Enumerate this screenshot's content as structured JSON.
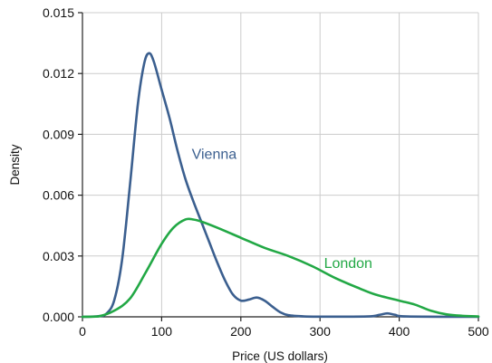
{
  "chart_data": {
    "type": "line",
    "xlabel": "Price (US dollars)",
    "ylabel": "Density",
    "xlim": [
      0,
      500
    ],
    "ylim": [
      0,
      0.015
    ],
    "x_ticks": [
      0,
      100,
      200,
      300,
      400,
      500
    ],
    "x_tick_labels": [
      "0",
      "100",
      "200",
      "300",
      "400",
      "500"
    ],
    "y_ticks": [
      0,
      0.003,
      0.006,
      0.009,
      0.012,
      0.015
    ],
    "y_tick_labels": [
      "0.000",
      "0.003",
      "0.006",
      "0.009",
      "0.012",
      "0.015"
    ],
    "grid": true,
    "legend": "none",
    "series": [
      {
        "name": "Vienna",
        "color": "#3b5f8f",
        "label_at": [
          138,
          0.0078
        ],
        "points": [
          [
            0,
            0
          ],
          [
            20,
            3e-05
          ],
          [
            30,
            0.00015
          ],
          [
            40,
            0.0008
          ],
          [
            50,
            0.0028
          ],
          [
            60,
            0.0065
          ],
          [
            70,
            0.0105
          ],
          [
            78,
            0.0125
          ],
          [
            84,
            0.013
          ],
          [
            90,
            0.0126
          ],
          [
            100,
            0.0112
          ],
          [
            110,
            0.0098
          ],
          [
            120,
            0.0082
          ],
          [
            130,
            0.0068
          ],
          [
            140,
            0.0057
          ],
          [
            150,
            0.0047
          ],
          [
            160,
            0.0037
          ],
          [
            170,
            0.0027
          ],
          [
            180,
            0.0018
          ],
          [
            190,
            0.0011
          ],
          [
            200,
            0.0008
          ],
          [
            210,
            0.00085
          ],
          [
            220,
            0.00095
          ],
          [
            230,
            0.0008
          ],
          [
            240,
            0.0005
          ],
          [
            250,
            0.00022
          ],
          [
            260,
            8e-05
          ],
          [
            280,
            2e-05
          ],
          [
            300,
            1e-05
          ],
          [
            360,
            2e-05
          ],
          [
            375,
            0.0001
          ],
          [
            385,
            0.00017
          ],
          [
            395,
            0.0001
          ],
          [
            410,
            2e-05
          ],
          [
            500,
            0
          ]
        ]
      },
      {
        "name": "London",
        "color": "#22a845",
        "label_at": [
          305,
          0.0024
        ],
        "points": [
          [
            0,
            0
          ],
          [
            20,
            2e-05
          ],
          [
            40,
            0.0003
          ],
          [
            60,
            0.0009
          ],
          [
            80,
            0.0022
          ],
          [
            100,
            0.0036
          ],
          [
            115,
            0.0044
          ],
          [
            130,
            0.0048
          ],
          [
            140,
            0.0048
          ],
          [
            150,
            0.0047
          ],
          [
            170,
            0.0044
          ],
          [
            200,
            0.0039
          ],
          [
            230,
            0.0034
          ],
          [
            260,
            0.003
          ],
          [
            290,
            0.0025
          ],
          [
            320,
            0.0019
          ],
          [
            350,
            0.0014
          ],
          [
            370,
            0.0011
          ],
          [
            400,
            0.0008
          ],
          [
            420,
            0.0006
          ],
          [
            440,
            0.0003
          ],
          [
            460,
            0.00012
          ],
          [
            480,
            5e-05
          ],
          [
            500,
            2e-05
          ]
        ]
      }
    ]
  }
}
